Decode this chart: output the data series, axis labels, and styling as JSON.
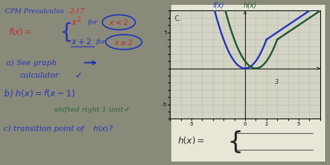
{
  "bg_color": "#8a8a7a",
  "left_panel": {
    "blue_color": "#2233bb",
    "red_color": "#cc2222",
    "green_color": "#226633"
  },
  "right_panel": {
    "white_box_bg": "#e8e8d8",
    "graph_bg": "#d4d4c4",
    "grid_color": "#aaaaaa",
    "fx_color": "#2233bb",
    "hx_color": "#1a5533",
    "xlim": [
      -7,
      7
    ],
    "ylim": [
      -7,
      8
    ],
    "bottom_bg": "#f0f0e0"
  }
}
